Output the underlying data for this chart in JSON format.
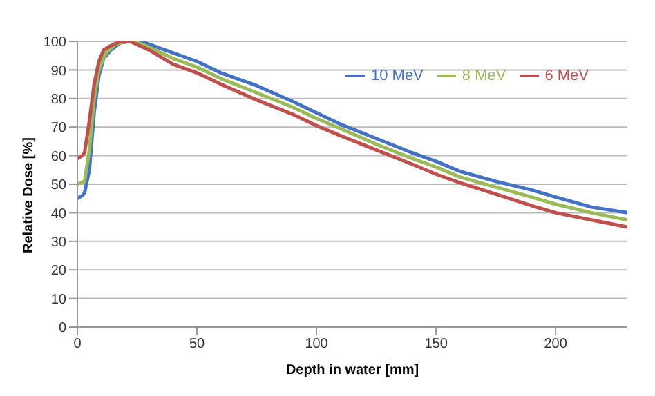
{
  "chart_data": {
    "type": "line",
    "xlabel": "Depth in water [mm]",
    "ylabel": "Relative Dose [%]",
    "xlim": [
      0,
      230
    ],
    "xticks": [
      0,
      50,
      100,
      150,
      200
    ],
    "ylim": [
      0,
      100
    ],
    "yticks": [
      0,
      10,
      20,
      30,
      40,
      50,
      60,
      70,
      80,
      90,
      100
    ],
    "grid": "y",
    "legend": "top right",
    "marker": "none",
    "line_style": "solid",
    "series": [
      {
        "name": "10 MeV",
        "color": "#4472c4",
        "x": [
          0,
          2,
          3,
          5,
          7,
          9,
          11,
          14,
          18,
          22,
          26,
          30,
          40,
          50,
          60,
          75,
          90,
          100,
          110,
          125,
          140,
          150,
          160,
          175,
          190,
          200,
          215,
          230
        ],
        "values": [
          45,
          46,
          47,
          55,
          75,
          88,
          94,
          97,
          99.5,
          100,
          100,
          99,
          96,
          93,
          89,
          84.5,
          79,
          75,
          71,
          66,
          61,
          58,
          54.5,
          51,
          48,
          45.5,
          42,
          40
        ]
      },
      {
        "name": "8 MeV",
        "color": "#9bbb59",
        "x": [
          0,
          3,
          5,
          7,
          9,
          12,
          16,
          20,
          24,
          30,
          40,
          50,
          60,
          75,
          90,
          100,
          110,
          125,
          140,
          150,
          160,
          175,
          190,
          200,
          215,
          230
        ],
        "values": [
          50,
          51,
          62,
          80,
          90,
          96,
          99,
          100,
          100,
          98,
          94,
          91,
          87,
          82,
          77,
          73,
          69.5,
          64,
          59,
          56,
          52.5,
          49,
          45.5,
          43,
          40,
          37.5
        ]
      },
      {
        "name": "6 MeV",
        "color": "#c0504d",
        "x": [
          0,
          2,
          3,
          5,
          7,
          9,
          11,
          14,
          18,
          22,
          30,
          40,
          50,
          60,
          75,
          90,
          100,
          110,
          125,
          140,
          150,
          160,
          175,
          190,
          200,
          215,
          230
        ],
        "values": [
          59,
          60,
          61,
          72,
          85,
          93,
          97,
          98.5,
          100,
          100,
          97,
          92,
          89,
          85,
          79.5,
          74.5,
          70.5,
          67,
          62,
          57,
          53.5,
          50.5,
          46.5,
          42.5,
          40,
          37.5,
          35
        ]
      }
    ]
  }
}
